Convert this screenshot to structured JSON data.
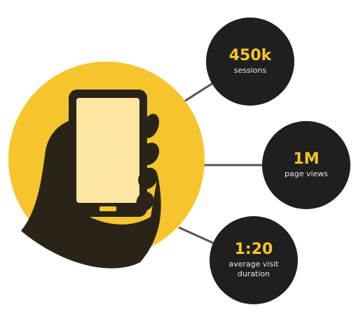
{
  "stats": [
    {
      "value": "450k",
      "label": [
        "sessions"
      ]
    },
    {
      "value": "1M",
      "label": [
        "page views"
      ]
    },
    {
      "value": "1:20",
      "label": [
        "average visit",
        "duration"
      ]
    }
  ]
}
